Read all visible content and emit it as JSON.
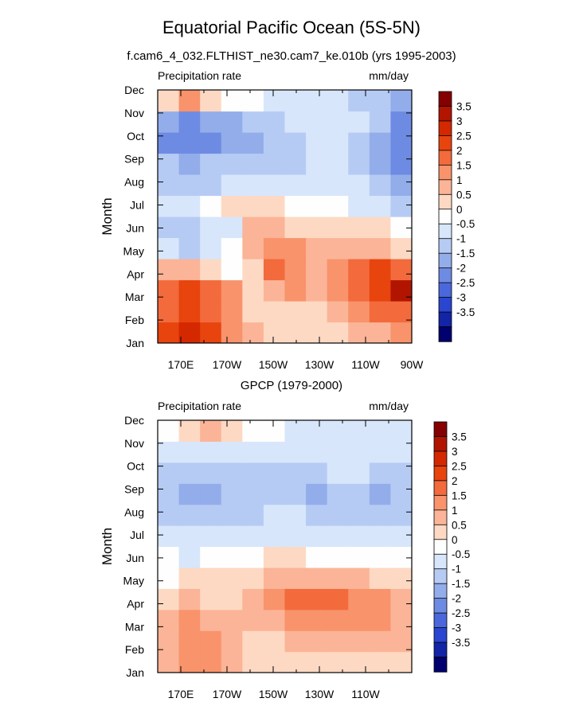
{
  "figure": {
    "title": "Equatorial Pacific Ocean (5S-5N)",
    "colorbar": {
      "levels": [
        "3.5",
        "3",
        "2.5",
        "2",
        "1.5",
        "1",
        "0.5",
        "0",
        "-0.5",
        "-1",
        "-1.5",
        "-2",
        "-2.5",
        "-3",
        "-3.5"
      ],
      "colors": [
        "#850000",
        "#b11500",
        "#d42800",
        "#e8440e",
        "#f36a3c",
        "#f8936b",
        "#fbb497",
        "#fdd9c3",
        "#fefefe",
        "#d7e6fb",
        "#b6cbf4",
        "#93adeb",
        "#6e8be3",
        "#4a68dc",
        "#2a45cf",
        "#1424a6",
        "#00006e"
      ]
    }
  },
  "chart_data": [
    {
      "type": "heatmap",
      "title": "f.cam6_4_032.FLTHIST_ne30.cam7_ke.010b (yrs 1995-2003)",
      "left_label": "Precipitation rate",
      "right_label": "mm/day",
      "ylabel": "Month",
      "xlabel": "",
      "x_ticks": [
        "170E",
        "170W",
        "150W",
        "130W",
        "110W",
        "90W"
      ],
      "x_tick_values": [
        170,
        190,
        210,
        230,
        250,
        270
      ],
      "xlim": [
        160,
        270
      ],
      "y_ticks": [
        "Jan",
        "Feb",
        "Mar",
        "Apr",
        "May",
        "Jun",
        "Jul",
        "Aug",
        "Sep",
        "Oct",
        "Nov",
        "Dec"
      ],
      "x": [
        160,
        170,
        180,
        190,
        200,
        210,
        220,
        230,
        240,
        250,
        260,
        270
      ],
      "values": [
        [
          2.5,
          3,
          2.5,
          1.5,
          1,
          0.5,
          0.5,
          0.5,
          0.5,
          1,
          1,
          1.5
        ],
        [
          2,
          2.5,
          2,
          1.5,
          0.5,
          0.5,
          0.5,
          0.5,
          1,
          1.5,
          2,
          2
        ],
        [
          2,
          2.5,
          2,
          1.5,
          0.5,
          1,
          1.5,
          1,
          1.5,
          2,
          2.5,
          3.5
        ],
        [
          1,
          1,
          0.5,
          0,
          0.5,
          2,
          1.5,
          1,
          1.5,
          2,
          2.5,
          2
        ],
        [
          -0.5,
          -1,
          -0.5,
          0,
          1,
          1.5,
          1.5,
          1,
          1,
          1,
          1,
          0.5
        ],
        [
          -1,
          -1,
          -0.5,
          -0.5,
          1,
          1,
          0.5,
          0.5,
          0.5,
          0.5,
          0.5,
          0
        ],
        [
          -0.5,
          -0.5,
          0,
          0.5,
          0.5,
          0.5,
          0,
          0,
          0,
          -0.5,
          -0.5,
          -1
        ],
        [
          -1,
          -1,
          -1,
          -0.5,
          -0.5,
          -0.5,
          -0.5,
          -0.5,
          -0.5,
          -0.5,
          -1,
          -1.5
        ],
        [
          -1,
          -1.5,
          -1,
          -1,
          -1,
          -1,
          -1,
          -0.5,
          -0.5,
          -1,
          -1.5,
          -2
        ],
        [
          -2,
          -2,
          -2,
          -1.5,
          -1.5,
          -1,
          -1,
          -0.5,
          -0.5,
          -1,
          -1.5,
          -2
        ],
        [
          -1.5,
          -2,
          -1.5,
          -1.5,
          -1,
          -1,
          -0.5,
          -0.5,
          -0.5,
          -0.5,
          -1,
          -2
        ],
        [
          0.5,
          1.5,
          0.5,
          0,
          0,
          -0.5,
          -0.5,
          -0.5,
          -0.5,
          -1,
          -1,
          -1.5
        ]
      ]
    },
    {
      "type": "heatmap",
      "title": "GPCP (1979-2000)",
      "left_label": "Precipitation rate",
      "right_label": "mm/day",
      "ylabel": "Month",
      "xlabel": "",
      "x_ticks": [
        "170E",
        "170W",
        "150W",
        "130W",
        "110W"
      ],
      "x_tick_values": [
        170,
        190,
        210,
        230,
        250
      ],
      "xlim": [
        160,
        270
      ],
      "y_ticks": [
        "Jan",
        "Feb",
        "Mar",
        "Apr",
        "May",
        "Jun",
        "Jul",
        "Aug",
        "Sep",
        "Oct",
        "Nov",
        "Dec"
      ],
      "x": [
        160,
        170,
        180,
        190,
        200,
        210,
        220,
        230,
        240,
        250,
        260,
        270
      ],
      "values": [
        [
          1,
          1.5,
          1.5,
          1,
          0.5,
          0.5,
          0.5,
          0.5,
          0.5,
          0.5,
          0.5,
          0.5
        ],
        [
          1,
          1.5,
          1.5,
          1,
          0.5,
          0.5,
          1,
          1,
          1,
          1,
          1,
          1
        ],
        [
          1,
          1.5,
          1,
          1,
          1,
          1,
          1.5,
          1.5,
          1.5,
          1.5,
          1.5,
          1
        ],
        [
          0.5,
          1,
          0.5,
          0.5,
          1,
          1.5,
          2,
          2,
          2,
          1.5,
          1.5,
          1
        ],
        [
          0,
          0.5,
          0.5,
          0.5,
          0.5,
          1,
          1,
          1,
          1,
          1,
          0.5,
          0.5
        ],
        [
          0,
          -0.5,
          0,
          0,
          0,
          0.5,
          0.5,
          0,
          0,
          0,
          0,
          0
        ],
        [
          -0.5,
          -0.5,
          -0.5,
          -0.5,
          -0.5,
          -0.5,
          -0.5,
          -0.5,
          -0.5,
          -0.5,
          -0.5,
          -0.5
        ],
        [
          -1,
          -1,
          -1,
          -1,
          -1,
          -0.5,
          -0.5,
          -1,
          -1,
          -1,
          -1,
          -1
        ],
        [
          -1,
          -1.5,
          -1.5,
          -1,
          -1,
          -1,
          -1,
          -1.5,
          -1,
          -1,
          -1.5,
          -1
        ],
        [
          -1,
          -1,
          -1,
          -1,
          -1,
          -1,
          -1,
          -1,
          -0.5,
          -0.5,
          -1,
          -1
        ],
        [
          -0.5,
          -0.5,
          -0.5,
          -0.5,
          -0.5,
          -0.5,
          -0.5,
          -0.5,
          -0.5,
          -0.5,
          -0.5,
          -0.5
        ],
        [
          0,
          0.5,
          1,
          0.5,
          0,
          0,
          -0.5,
          -0.5,
          -0.5,
          -0.5,
          -0.5,
          -0.5
        ]
      ]
    }
  ]
}
